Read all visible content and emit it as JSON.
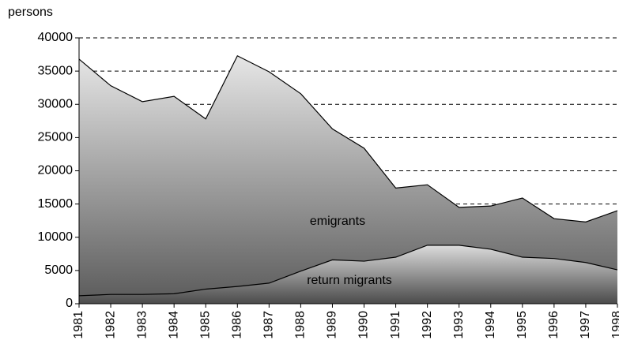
{
  "chart_data": {
    "type": "area",
    "y_label": "persons",
    "categories": [
      "1981",
      "1982",
      "1983",
      "1984",
      "1985",
      "1986",
      "1987",
      "1988",
      "1989",
      "1990",
      "1991",
      "1992",
      "1993",
      "1994",
      "1995",
      "1996",
      "1997",
      "1998"
    ],
    "series": [
      {
        "name": "emigrants",
        "color": "#e6e6e6",
        "values": [
          36800,
          32800,
          30400,
          31200,
          27800,
          37300,
          34900,
          31600,
          26300,
          23400,
          17400,
          17900,
          14500,
          14700,
          15900,
          12800,
          12300,
          14000
        ]
      },
      {
        "name": "return migrants",
        "color": "#dcdcdc",
        "values": [
          1200,
          1400,
          1400,
          1500,
          2200,
          2600,
          3100,
          4900,
          6600,
          6400,
          7000,
          8800,
          8800,
          8200,
          7000,
          6800,
          6200,
          5100
        ]
      }
    ],
    "ylim": [
      0,
      40000
    ],
    "yticks": [
      0,
      5000,
      10000,
      15000,
      20000,
      25000,
      30000,
      35000,
      40000
    ],
    "grid": true
  }
}
